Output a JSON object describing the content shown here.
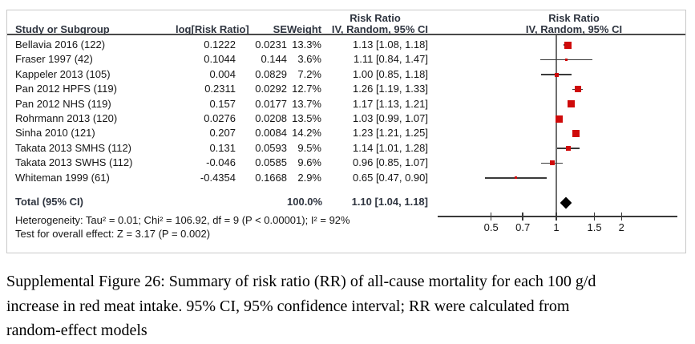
{
  "table": {
    "col_headers": {
      "study": "Study or Subgroup",
      "log_rr": "log[Risk Ratio]",
      "se": "SE",
      "weight": "Weight",
      "effect_line1": "Risk Ratio",
      "effect_line2": "IV, Random, 95% CI"
    },
    "plot_headers": {
      "line1": "Risk Ratio",
      "line2": "IV, Random, 95% CI"
    },
    "rows": [
      {
        "study": "Bellavia 2016 (122)",
        "log_rr": "0.1222",
        "se": "0.0231",
        "weight": "13.3%",
        "ci": "1.13 [1.08, 1.18]"
      },
      {
        "study": "Fraser 1997 (42)",
        "log_rr": "0.1044",
        "se": "0.144",
        "weight": "3.6%",
        "ci": "1.11 [0.84, 1.47]"
      },
      {
        "study": "Kappeler 2013 (105)",
        "log_rr": "0.004",
        "se": "0.0829",
        "weight": "7.2%",
        "ci": "1.00 [0.85, 1.18]"
      },
      {
        "study": "Pan 2012 HPFS (119)",
        "log_rr": "0.2311",
        "se": "0.0292",
        "weight": "12.7%",
        "ci": "1.26 [1.19, 1.33]"
      },
      {
        "study": "Pan 2012 NHS (119)",
        "log_rr": "0.157",
        "se": "0.0177",
        "weight": "13.7%",
        "ci": "1.17 [1.13, 1.21]"
      },
      {
        "study": "Rohrmann 2013 (120)",
        "log_rr": "0.0276",
        "se": "0.0208",
        "weight": "13.5%",
        "ci": "1.03 [0.99, 1.07]"
      },
      {
        "study": "Sinha 2010 (121)",
        "log_rr": "0.207",
        "se": "0.0084",
        "weight": "14.2%",
        "ci": "1.23 [1.21, 1.25]"
      },
      {
        "study": "Takata 2013 SMHS (112)",
        "log_rr": "0.131",
        "se": "0.0593",
        "weight": "9.5%",
        "ci": "1.14 [1.01, 1.28]"
      },
      {
        "study": "Takata 2013 SWHS (112)",
        "log_rr": "-0.046",
        "se": "0.0585",
        "weight": "9.6%",
        "ci": "0.96 [0.85, 1.07]"
      },
      {
        "study": "Whiteman 1999 (61)",
        "log_rr": "-0.4354",
        "se": "0.1668",
        "weight": "2.9%",
        "ci": "0.65 [0.47, 0.90]"
      }
    ],
    "total": {
      "label": "Total (95% CI)",
      "weight": "100.0%",
      "ci": "1.10 [1.04, 1.18]"
    },
    "heterogeneity": "Heterogeneity: Tau² = 0.01; Chi² = 106.92, df = 9 (P < 0.00001); I² = 92%",
    "overall_effect": "Test for overall effect: Z = 3.17 (P = 0.002)"
  },
  "chart_data": {
    "type": "scatter",
    "subtype": "forest-plot",
    "title": "Risk Ratio, IV, Random, 95% CI",
    "x_scale": "log",
    "x_ticks": [
      0.5,
      0.7,
      1,
      1.5,
      2
    ],
    "ref_line": 1,
    "studies": [
      {
        "name": "Bellavia 2016 (122)",
        "est": 1.13,
        "lo": 1.08,
        "hi": 1.18,
        "weight_pct": 13.3
      },
      {
        "name": "Fraser 1997 (42)",
        "est": 1.11,
        "lo": 0.84,
        "hi": 1.47,
        "weight_pct": 3.6
      },
      {
        "name": "Kappeler 2013 (105)",
        "est": 1.0,
        "lo": 0.85,
        "hi": 1.18,
        "weight_pct": 7.2
      },
      {
        "name": "Pan 2012 HPFS (119)",
        "est": 1.26,
        "lo": 1.19,
        "hi": 1.33,
        "weight_pct": 12.7
      },
      {
        "name": "Pan 2012 NHS (119)",
        "est": 1.17,
        "lo": 1.13,
        "hi": 1.21,
        "weight_pct": 13.7
      },
      {
        "name": "Rohrmann 2013 (120)",
        "est": 1.03,
        "lo": 0.99,
        "hi": 1.07,
        "weight_pct": 13.5
      },
      {
        "name": "Sinha 2010 (121)",
        "est": 1.23,
        "lo": 1.21,
        "hi": 1.25,
        "weight_pct": 14.2
      },
      {
        "name": "Takata 2013 SMHS (112)",
        "est": 1.14,
        "lo": 1.01,
        "hi": 1.28,
        "weight_pct": 9.5
      },
      {
        "name": "Takata 2013 SWHS (112)",
        "est": 0.96,
        "lo": 0.85,
        "hi": 1.07,
        "weight_pct": 9.6
      },
      {
        "name": "Whiteman 1999 (61)",
        "est": 0.65,
        "lo": 0.47,
        "hi": 0.9,
        "weight_pct": 2.9
      }
    ],
    "total": {
      "est": 1.1,
      "lo": 1.04,
      "hi": 1.18
    }
  },
  "caption": {
    "lines": [
      "Supplemental Figure 26: Summary of risk ratio (RR) of all-cause mortality for each 100 g/d",
      "increase in red meat intake. 95% CI, 95% confidence interval; RR were calculated from",
      "random-effect models"
    ]
  },
  "colors": {
    "marker_red": "#cf0a0a",
    "diamond_black": "#000000",
    "line_dark": "#3a3a3a",
    "box_border": "#c9c9c9"
  }
}
